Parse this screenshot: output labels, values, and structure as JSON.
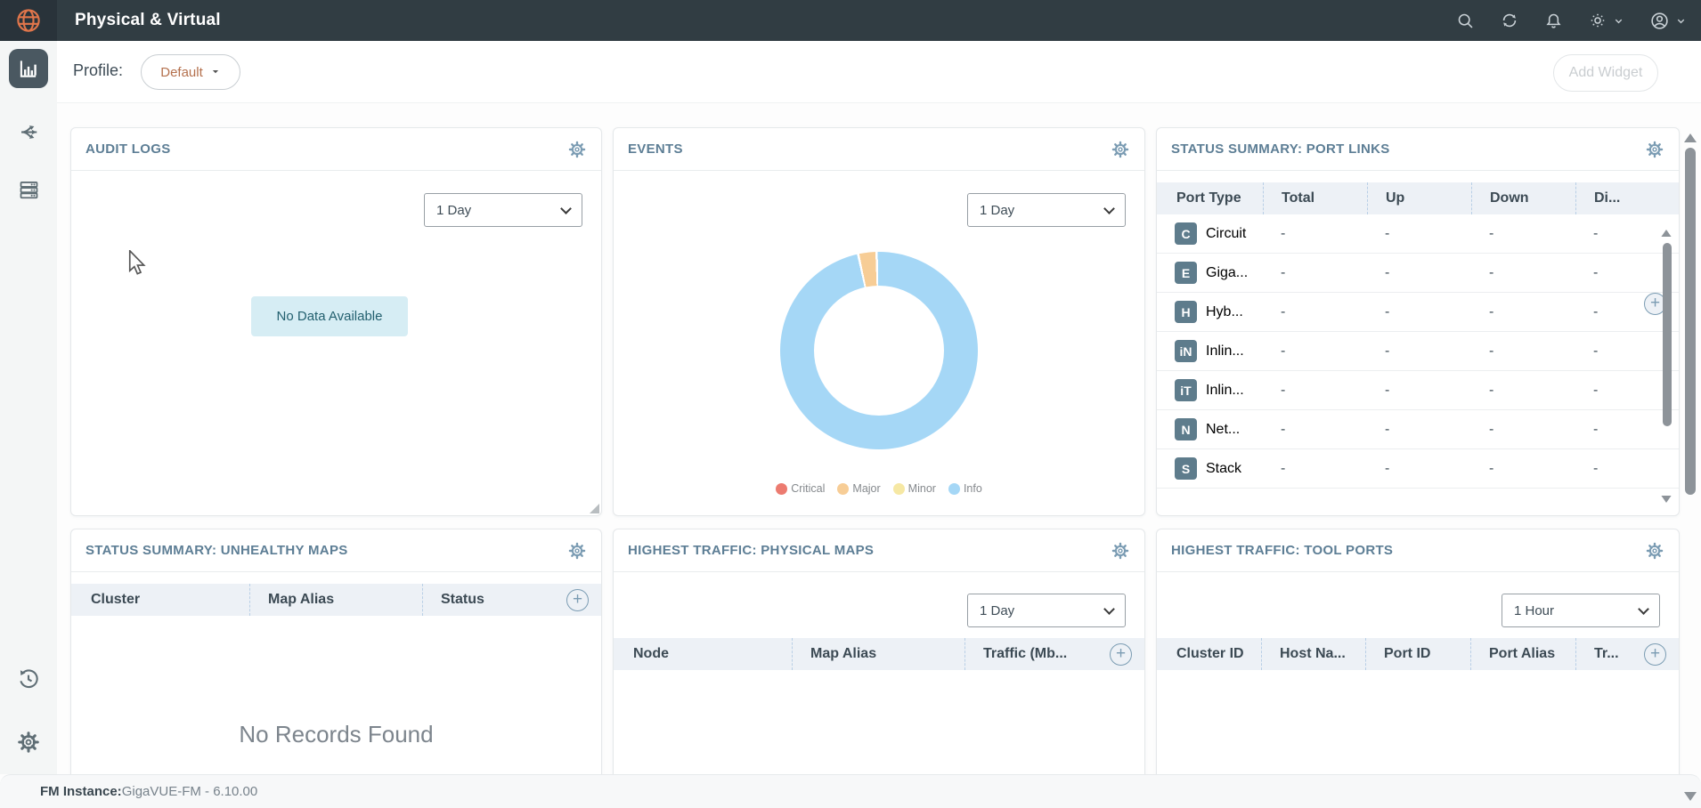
{
  "top_bar": {
    "title": "Physical & Virtual",
    "icons": [
      "globe-icon",
      "search-icon",
      "refresh-icon",
      "notifications-bell-icon",
      "theme-sun-icon",
      "user-account-icon"
    ],
    "bar_color": "#313d43",
    "logo_color": "#e1764b"
  },
  "sidebar": {
    "items": [
      "dashboard",
      "traffic",
      "inventory",
      "recent-history",
      "settings"
    ],
    "active_item": "dashboard"
  },
  "profile_bar": {
    "label": "Profile:",
    "profile_value": "Default",
    "add_widget_label": "Add Widget"
  },
  "widgets": {
    "audit_logs": {
      "title": "AUDIT LOGS",
      "time_range": "1 Day",
      "empty_message": "No Data Available"
    },
    "events": {
      "title": "EVENTS",
      "time_range": "1 Day",
      "chart_data": {
        "type": "pie",
        "subtype": "donut",
        "labels": [
          "Critical",
          "Major",
          "Minor",
          "Info"
        ],
        "values": [
          0,
          3,
          0,
          97
        ],
        "colors": [
          "#ec7b70",
          "#f7cd96",
          "#f6e8a4",
          "#a5d7f6"
        ],
        "start_angle": -11.5,
        "legend_position": "bottom"
      }
    },
    "port_links": {
      "title": "STATUS SUMMARY: PORT LINKS",
      "columns": [
        "Port Type",
        "Total",
        "Up",
        "Down",
        "Di..."
      ],
      "rows": [
        {
          "badge": "C",
          "label": "Circuit",
          "values": [
            "-",
            "-",
            "-",
            "-"
          ]
        },
        {
          "badge": "E",
          "label": "Giga...",
          "values": [
            "-",
            "-",
            "-",
            "-"
          ]
        },
        {
          "badge": "H",
          "label": "Hyb...",
          "values": [
            "-",
            "-",
            "-",
            "-"
          ]
        },
        {
          "badge": "iN",
          "label": "Inlin...",
          "values": [
            "-",
            "-",
            "-",
            "-"
          ]
        },
        {
          "badge": "iT",
          "label": "Inlin...",
          "values": [
            "-",
            "-",
            "-",
            "-"
          ]
        },
        {
          "badge": "N",
          "label": "Net...",
          "values": [
            "-",
            "-",
            "-",
            "-"
          ]
        },
        {
          "badge": "S",
          "label": "Stack",
          "values": [
            "-",
            "-",
            "-",
            "-"
          ]
        }
      ]
    },
    "unhealthy_maps": {
      "title": "STATUS SUMMARY: UNHEALTHY MAPS",
      "columns": [
        "Cluster",
        "Map Alias",
        "Status"
      ],
      "empty_message": "No Records Found"
    },
    "physical_maps": {
      "title": "HIGHEST TRAFFIC: PHYSICAL MAPS",
      "time_range": "1 Day",
      "columns": [
        "Node",
        "Map Alias",
        "Traffic (Mb..."
      ]
    },
    "tool_ports": {
      "title": "HIGHEST TRAFFIC: TOOL PORTS",
      "time_range": "1 Hour",
      "columns": [
        "Cluster ID",
        "Host Na...",
        "Port ID",
        "Port Alias",
        "Tr..."
      ]
    }
  },
  "footer": {
    "label": "FM Instance:",
    "value": "GigaVUE-FM - 6.10.00"
  },
  "colors": {
    "widget_title": "#5d7e95",
    "table_header_bg": "#edf1f6",
    "badge_bg": "#5e7c8c",
    "nodata_bg": "#d6edf4",
    "accent_orange": "#e1764b"
  }
}
